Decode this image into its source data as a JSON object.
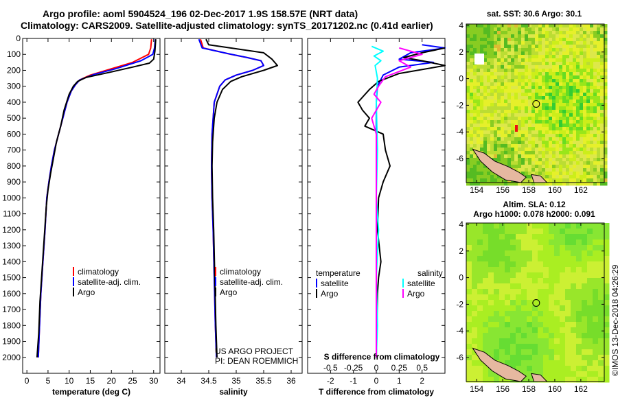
{
  "title_line1": "Argo profile: aoml 5904524_196 02-Dec-2017 1.9S 158.57E (NRT data)",
  "title_line2": "Climatology: CARS2009. Satellite-adjusted climatology: synTS_20171202.nc (0.41d earlier)",
  "credit_lines": [
    "US ARGO PROJECT",
    "PI: DEAN ROEMMICH"
  ],
  "stamp": "©IMOS 13-Dec-2018 04:26:29",
  "colors": {
    "climatology": "#ff0000",
    "satellite": "#0000ff",
    "argo": "#000000",
    "satellite_salinity": "#00ffff",
    "argo_salinity": "#ff00ff"
  },
  "chart_data": [
    {
      "type": "line",
      "id": "temperature",
      "xlabel": "temperature (deg C)",
      "ylabel": "",
      "xlim": [
        -1,
        31.5
      ],
      "ylim": [
        0,
        2100
      ],
      "xticks": [
        0,
        5,
        10,
        15,
        20,
        25,
        30
      ],
      "yticks": [
        0,
        100,
        200,
        300,
        400,
        500,
        600,
        700,
        800,
        900,
        1000,
        1100,
        1200,
        1300,
        1400,
        1500,
        1600,
        1700,
        1800,
        1900,
        2000
      ],
      "legend": [
        "climatology",
        "satellite-adj. clim.",
        "Argo"
      ],
      "series": [
        {
          "name": "climatology",
          "color": "#ff0000",
          "points": [
            [
              29.5,
              5
            ],
            [
              29.3,
              60
            ],
            [
              28.8,
              100
            ],
            [
              25,
              150
            ],
            [
              20,
              190
            ],
            [
              15,
              230
            ],
            [
              12.5,
              260
            ],
            [
              11.5,
              290
            ],
            [
              10.5,
              330
            ],
            [
              9.5,
              400
            ],
            [
              8.5,
              500
            ],
            [
              7.5,
              600
            ],
            [
              6.5,
              700
            ],
            [
              5.8,
              800
            ],
            [
              5.2,
              900
            ],
            [
              4.7,
              1000
            ],
            [
              4.3,
              1200
            ],
            [
              3.8,
              1400
            ],
            [
              3.3,
              1600
            ],
            [
              3,
              1800
            ],
            [
              2.7,
              2000
            ]
          ]
        },
        {
          "name": "satellite-adj. clim.",
          "color": "#0000ff",
          "points": [
            [
              30.4,
              5
            ],
            [
              30.2,
              60
            ],
            [
              29.8,
              100
            ],
            [
              27,
              140
            ],
            [
              21,
              190
            ],
            [
              16,
              225
            ],
            [
              12.5,
              260
            ],
            [
              11.5,
              290
            ],
            [
              10.5,
              330
            ],
            [
              9.5,
              400
            ],
            [
              8.5,
              500
            ],
            [
              7.5,
              600
            ],
            [
              6.5,
              700
            ],
            [
              5.8,
              800
            ],
            [
              5.2,
              900
            ],
            [
              4.7,
              1000
            ],
            [
              4.3,
              1200
            ],
            [
              3.8,
              1400
            ],
            [
              3.3,
              1600
            ],
            [
              3,
              1800
            ],
            [
              2.7,
              2000
            ]
          ]
        },
        {
          "name": "Argo",
          "color": "#000000",
          "points": [
            [
              30.5,
              5
            ],
            [
              30.3,
              80
            ],
            [
              30,
              130
            ],
            [
              29,
              155
            ],
            [
              25,
              180
            ],
            [
              20,
              210
            ],
            [
              14,
              245
            ],
            [
              12,
              270
            ],
            [
              11,
              300
            ],
            [
              10,
              350
            ],
            [
              8.8,
              450
            ],
            [
              8,
              550
            ],
            [
              7,
              650
            ],
            [
              6.3,
              750
            ],
            [
              5.6,
              850
            ],
            [
              5,
              950
            ],
            [
              4.6,
              1050
            ],
            [
              4.1,
              1250
            ],
            [
              3.6,
              1450
            ],
            [
              3.1,
              1650
            ],
            [
              2.8,
              1850
            ],
            [
              2.4,
              2000
            ]
          ]
        }
      ]
    },
    {
      "type": "line",
      "id": "salinity",
      "xlabel": "salinity",
      "ylabel": "",
      "xlim": [
        33.7,
        36.2
      ],
      "ylim": [
        0,
        2100
      ],
      "xticks": [
        34,
        34.5,
        35,
        35.5,
        36
      ],
      "legend": [
        "climatology",
        "satellite-adj. clim.",
        "Argo"
      ],
      "series": [
        {
          "name": "climatology",
          "color": "#ff0000",
          "points": [
            [
              34.35,
              5
            ],
            [
              34.4,
              60
            ],
            [
              34.9,
              100
            ],
            [
              35.2,
              120
            ],
            [
              35.45,
              140
            ],
            [
              35.5,
              170
            ],
            [
              35.3,
              200
            ],
            [
              35,
              230
            ],
            [
              34.8,
              260
            ],
            [
              34.7,
              300
            ],
            [
              34.6,
              400
            ],
            [
              34.58,
              500
            ],
            [
              34.56,
              600
            ],
            [
              34.55,
              800
            ],
            [
              34.56,
              1000
            ],
            [
              34.58,
              1200
            ],
            [
              34.6,
              1500
            ],
            [
              34.62,
              1800
            ],
            [
              34.64,
              2000
            ]
          ]
        },
        {
          "name": "satellite-adj. clim.",
          "color": "#0000ff",
          "points": [
            [
              34.32,
              5
            ],
            [
              34.38,
              60
            ],
            [
              34.85,
              95
            ],
            [
              35.2,
              120
            ],
            [
              35.45,
              140
            ],
            [
              35.5,
              170
            ],
            [
              35.3,
              200
            ],
            [
              35,
              230
            ],
            [
              34.8,
              260
            ],
            [
              34.7,
              300
            ],
            [
              34.6,
              400
            ],
            [
              34.58,
              500
            ],
            [
              34.56,
              600
            ],
            [
              34.55,
              800
            ],
            [
              34.56,
              1000
            ],
            [
              34.58,
              1200
            ],
            [
              34.6,
              1500
            ],
            [
              34.62,
              1800
            ],
            [
              34.64,
              2000
            ]
          ]
        },
        {
          "name": "Argo",
          "color": "#000000",
          "points": [
            [
              34.45,
              5
            ],
            [
              34.5,
              40
            ],
            [
              35.1,
              70
            ],
            [
              35.5,
              90
            ],
            [
              35.65,
              130
            ],
            [
              35.75,
              170
            ],
            [
              35.5,
              200
            ],
            [
              35.1,
              240
            ],
            [
              34.9,
              270
            ],
            [
              34.75,
              320
            ],
            [
              34.65,
              400
            ],
            [
              34.6,
              500
            ],
            [
              34.57,
              650
            ],
            [
              34.56,
              800
            ],
            [
              34.57,
              1000
            ],
            [
              34.59,
              1200
            ],
            [
              34.61,
              1500
            ],
            [
              34.63,
              1800
            ],
            [
              34.65,
              2000
            ]
          ]
        }
      ]
    },
    {
      "type": "line",
      "id": "difference",
      "xlabel": "T difference from climatology",
      "xlabel2": "S difference from climatology",
      "ylabel": "",
      "xlim": [
        -3,
        3
      ],
      "ylim": [
        0,
        2100
      ],
      "xticks": [
        -2,
        -1,
        0,
        1,
        2
      ],
      "xticks2": [
        -0.5,
        -0.25,
        0,
        0.25,
        0.5
      ],
      "xticks2_labels": [
        "-0.5",
        "-0.25",
        "0",
        "0.25",
        "0.5"
      ],
      "legend_left_title": "temperature",
      "legend_left": [
        "satellite",
        "Argo"
      ],
      "legend_right_title": "salinity",
      "legend_right": [
        "satellite",
        "Argo"
      ],
      "series": [
        {
          "name": "satellite",
          "color": "#0000ff",
          "points": [
            [
              2,
              40
            ],
            [
              3,
              60
            ],
            [
              1.5,
              90
            ],
            [
              1,
              130
            ],
            [
              2.5,
              150
            ],
            [
              1,
              180
            ],
            [
              0.3,
              230
            ],
            [
              0.05,
              300
            ],
            [
              0,
              400
            ],
            [
              0,
              800
            ],
            [
              0,
              1200
            ],
            [
              0,
              1600
            ],
            [
              0,
              2000
            ]
          ]
        },
        {
          "name": "Argo",
          "color": "#000000",
          "points": [
            [
              3,
              60
            ],
            [
              2,
              90
            ],
            [
              1.2,
              120
            ],
            [
              2,
              140
            ],
            [
              3,
              170
            ],
            [
              1,
              220
            ],
            [
              0.1,
              270
            ],
            [
              -0.3,
              320
            ],
            [
              -0.8,
              400
            ],
            [
              -0.6,
              450
            ],
            [
              -0.3,
              500
            ],
            [
              -0.5,
              550
            ],
            [
              0.3,
              600
            ],
            [
              0.4,
              700
            ],
            [
              0.6,
              800
            ],
            [
              0.3,
              900
            ],
            [
              0.1,
              1000
            ],
            [
              0.05,
              1200
            ],
            [
              0.2,
              1400
            ],
            [
              0.1,
              1500
            ],
            [
              0.05,
              1600
            ],
            [
              0,
              2000
            ]
          ]
        },
        {
          "name": "satellite",
          "color": "#00ffff",
          "points": [
            [
              -0.2,
              50
            ],
            [
              0.3,
              80
            ],
            [
              -0.1,
              110
            ],
            [
              0.2,
              140
            ],
            [
              -0.05,
              170
            ],
            [
              0.05,
              250
            ],
            [
              0,
              400
            ],
            [
              0.05,
              700
            ],
            [
              0,
              1000
            ],
            [
              0.1,
              1200
            ],
            [
              0,
              1500
            ],
            [
              0.05,
              1800
            ],
            [
              0,
              2000
            ]
          ]
        },
        {
          "name": "Argo",
          "color": "#ff00ff",
          "points": [
            [
              1,
              60
            ],
            [
              2,
              100
            ],
            [
              1,
              140
            ],
            [
              1.5,
              180
            ],
            [
              0.4,
              240
            ],
            [
              0.1,
              300
            ],
            [
              -0.1,
              350
            ],
            [
              0.2,
              400
            ],
            [
              -0.2,
              500
            ],
            [
              0,
              600
            ],
            [
              0,
              2000
            ]
          ]
        }
      ]
    },
    {
      "type": "heatmap",
      "id": "sst_map",
      "title": "sat. SST: 30.6 Argo: 30.1",
      "xlim": [
        153.2,
        163.8
      ],
      "ylim": [
        -7.8,
        4.1
      ],
      "xticks": [
        154,
        156,
        158,
        160,
        162
      ],
      "yticks": [
        -6,
        -4,
        -2,
        0,
        2,
        4
      ],
      "marker": [
        158.57,
        -1.9
      ]
    },
    {
      "type": "heatmap",
      "id": "sla_map",
      "title_lines": [
        "Altim. SLA: 0.12",
        "Argo h1000: 0.078 h2000: 0.091"
      ],
      "xlim": [
        153.2,
        163.8
      ],
      "ylim": [
        -7.8,
        4.1
      ],
      "xticks": [
        154,
        156,
        158,
        160,
        162
      ],
      "yticks": [
        -6,
        -4,
        -2,
        0,
        2,
        4
      ],
      "marker": [
        158.57,
        -1.9
      ]
    }
  ]
}
